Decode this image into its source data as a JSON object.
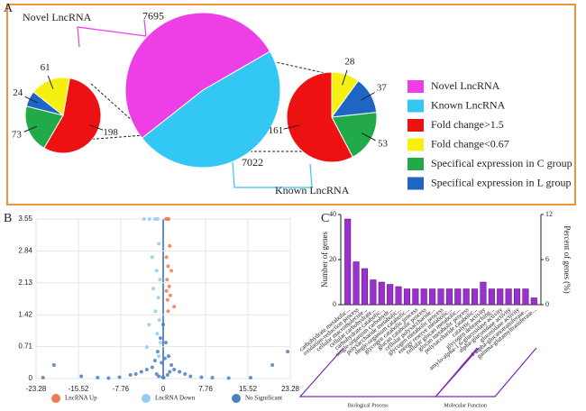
{
  "chart_data": [
    {
      "type": "pie",
      "panel": "A",
      "categories": [
        "Novel LncRNA",
        "Known LncRNA",
        "Fold change>1.5",
        "Fold change<0.67",
        "Specifical expression in C group",
        "Specifical expression in L group"
      ],
      "colors": [
        "#ee3ee6",
        "#33c8f4",
        "#ee1111",
        "#f6f010",
        "#22aa4a",
        "#1f66c4"
      ],
      "main": [
        7695,
        7022
      ],
      "novel": [
        198,
        61,
        73,
        24
      ],
      "known": [
        161,
        28,
        53,
        37
      ]
    },
    {
      "type": "scatter",
      "panel": "B",
      "xlim": [
        -23.28,
        23.28
      ],
      "xticks": [
        -23.28,
        -15.52,
        -7.76,
        0,
        7.76,
        15.52,
        23.28
      ],
      "ylim": [
        0,
        3.55
      ],
      "yticks": [
        0,
        0.71,
        1.42,
        2.13,
        2.84,
        3.55
      ],
      "grid": true,
      "series": [
        {
          "name": "LncRNA Up",
          "color": "#f07a55",
          "x": [
            0.5,
            0.8,
            1.0,
            1.2,
            0.6,
            0.9,
            1.5,
            0.7,
            1.1,
            0.6,
            1.3,
            0.8,
            2.0,
            0.9
          ],
          "y": [
            3.55,
            3.55,
            3.55,
            2.95,
            2.7,
            2.5,
            2.4,
            2.2,
            2.05,
            1.95,
            1.85,
            1.75,
            1.6,
            1.5
          ]
        },
        {
          "name": "LncRNA Down",
          "color": "#8fcdf2",
          "x": [
            -3.5,
            -2.5,
            -1.5,
            -1.0,
            -0.8,
            -2.0,
            -1.2,
            -0.6,
            -1.8,
            -0.9,
            -1.4,
            -0.7,
            -2.6,
            -1.1,
            -0.5,
            -3.0,
            -0.8
          ],
          "y": [
            3.55,
            3.55,
            3.55,
            3.55,
            3.0,
            2.7,
            2.4,
            2.2,
            2.0,
            1.8,
            1.5,
            1.3,
            1.2,
            1.0,
            0.8,
            0.7,
            0.5
          ]
        },
        {
          "name": "No Significant",
          "color": "#4a7fc0",
          "x": [
            -22,
            -20,
            -15,
            -12,
            -10,
            -8,
            -6,
            -5,
            -4,
            -3,
            -2,
            -1.5,
            -1,
            -0.5,
            0,
            0.5,
            1,
            1.5,
            2,
            3,
            4,
            5,
            7,
            9,
            12,
            16,
            20,
            22.8,
            -0.3,
            0.3,
            -1.2,
            1.2,
            -0.8,
            0.8,
            0.1,
            -0.1
          ],
          "y": [
            0.02,
            0.3,
            0.05,
            0.02,
            0.01,
            0.03,
            0.08,
            0.1,
            0.15,
            0.2,
            0.25,
            0.4,
            0.6,
            0.9,
            1.2,
            0.8,
            0.5,
            0.3,
            0.2,
            0.15,
            0.1,
            0.05,
            0.03,
            0.02,
            0.01,
            0.02,
            0.3,
            0.6,
            0.35,
            0.45,
            0.1,
            0.15,
            0.05,
            0.08,
            0.02,
            0.03
          ]
        }
      ]
    },
    {
      "type": "bar",
      "panel": "C",
      "color": "#9b2fd0",
      "ylabel": "Number of genes",
      "ylim": [
        0,
        40
      ],
      "yticks": [
        0,
        20,
        40
      ],
      "y2label": "Percent of genes (%)",
      "y2lim": [
        0,
        12
      ],
      "y2ticks": [
        0,
        6,
        12
      ],
      "groups": [
        {
          "name": "Biological Process",
          "categories": [
            "carbohydrate metabolic...",
            "oxidation-reduction process",
            "cellular macromolecule...",
            "cellular carbohydrate...",
            "carbohydrate catabolic...",
            "single-organism carbohydr...",
            "polysaccharide metabolic...",
            "single-organism catabolic...",
            "glycogen catabolic process",
            "glucan catabolic process",
            "cellular polysaccharide...",
            "glycogen metabolic process",
            "energy reserve metabolic...",
            "cellular glucan metabolic...",
            "glucan metabolic process",
            "polysaccharide catabolic..."
          ],
          "values": [
            38,
            19,
            16,
            11,
            10,
            9,
            8,
            7,
            7,
            7,
            7,
            7,
            7,
            7,
            7,
            7
          ]
        },
        {
          "name": "Molecular Function",
          "categories": [
            "catalytic activity",
            "glycogen debranching...",
            "amylo-alpha-1,6-glucosidase activity",
            "alpha-glucosidase activity",
            "glucosidase activity",
            "4-alpha-glucanotransferase...",
            "gamma-glutamyltransferase..."
          ],
          "values": [
            10,
            7,
            7,
            7,
            7,
            7,
            3
          ]
        }
      ]
    }
  ]
}
